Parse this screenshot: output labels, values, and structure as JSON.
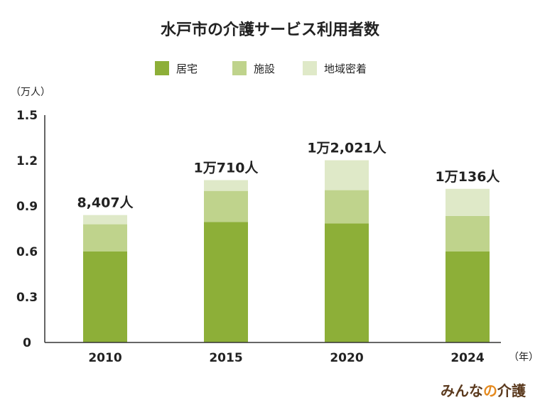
{
  "chart_data": {
    "type": "bar",
    "stacked": true,
    "title": "水戸市の介護サービス利用者数",
    "y_unit": "（万人）",
    "x_unit": "（年）",
    "categories": [
      "2010",
      "2015",
      "2020",
      "2024"
    ],
    "series": [
      {
        "name": "居宅",
        "color": "#8daf38",
        "values": [
          0.6,
          0.795,
          0.785,
          0.6
        ]
      },
      {
        "name": "施設",
        "color": "#bfd38c",
        "values": [
          0.18,
          0.205,
          0.22,
          0.235
        ]
      },
      {
        "name": "地域密着",
        "color": "#dfe9c8",
        "values": [
          0.0607,
          0.0711,
          0.1972,
          0.1786
        ]
      }
    ],
    "totals": [
      "8,407人",
      "1万710人",
      "1万2,021人",
      "1万136人"
    ],
    "ylim": [
      0,
      1.5
    ],
    "yticks": [
      "0",
      "0.3",
      "0.6",
      "0.9",
      "1.2",
      "1.5"
    ],
    "ytick_values": [
      0,
      0.3,
      0.6,
      0.9,
      1.2,
      1.5
    ],
    "legend_position": "top-center"
  },
  "brand": {
    "name_part1": "みんな",
    "name_part2": "の",
    "name_part3": "介護",
    "color_main": "#5b3a1e",
    "color_accent": "#e58a1f"
  },
  "colors": {
    "axis": "#333333"
  }
}
